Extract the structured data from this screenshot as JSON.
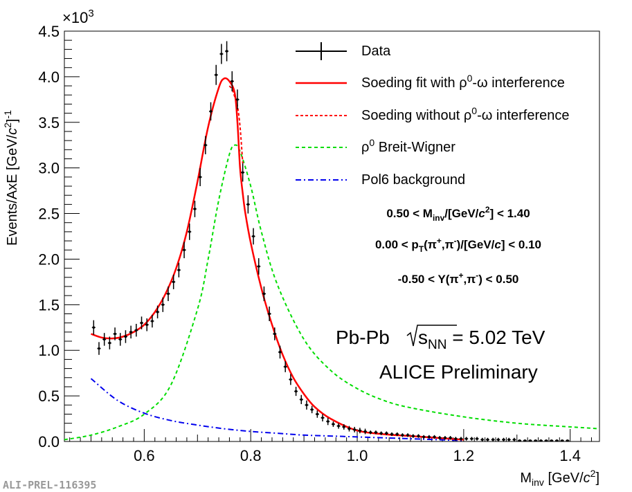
{
  "chart_data": {
    "type": "line",
    "title": "",
    "xlabel_main": "M",
    "xlabel_sub": "inv",
    "xlabel_rest": " [GeV/",
    "xlabel_c": "c",
    "xlabel_sup": "2",
    "xlabel_end": "]",
    "ylabel_main": "Events/AxE [GeV/",
    "ylabel_c": "c",
    "ylabel_sup": "2",
    "ylabel_end": "]",
    "ylabel_exp": "-1",
    "y_multiplier": "×10",
    "y_multiplier_exp": "3",
    "xlim": [
      0.45,
      1.455
    ],
    "ylim": [
      0.0,
      4.5
    ],
    "x_ticks": [
      0.6,
      0.8,
      1.0,
      1.2,
      1.4
    ],
    "x_tick_labels": [
      "0.6",
      "0.8",
      "1.0",
      "1.2",
      "1.4"
    ],
    "y_ticks": [
      0.0,
      0.5,
      1.0,
      1.5,
      2.0,
      2.5,
      3.0,
      3.5,
      4.0,
      4.5
    ],
    "y_tick_labels": [
      "0.0",
      "0.5",
      "1.0",
      "1.5",
      "2.0",
      "2.5",
      "3.0",
      "3.5",
      "4.0",
      "4.5"
    ],
    "legend": [
      {
        "key": "data",
        "label_a": "Data",
        "label_sup": "",
        "label_b": "",
        "color": "#000000",
        "style": "errorbar"
      },
      {
        "key": "fit",
        "label_a": "Soeding fit with ρ",
        "label_sup": "0",
        "label_b": "-ω interference",
        "color": "#ff0000",
        "style": "solid"
      },
      {
        "key": "nointerf",
        "label_a": "Soeding without ρ",
        "label_sup": "0",
        "label_b": "-ω interference",
        "color": "#ff0000",
        "style": "dashed"
      },
      {
        "key": "bw",
        "label_a": "ρ",
        "label_sup": "0",
        "label_b": " Breit-Wigner",
        "color": "#00dd00",
        "style": "dashed"
      },
      {
        "key": "bkg",
        "label_a": "Pol6 background",
        "label_sup": "",
        "label_b": "",
        "color": "#0000ee",
        "style": "dashdot"
      }
    ],
    "cuts": {
      "mass": {
        "a": "0.50 < M",
        "sub": "inv",
        "b": "/[GeV/",
        "c": "c",
        "sup": "2",
        "d": "] < 1.40"
      },
      "pt": {
        "a": "0.00 < p",
        "sub": "T",
        "b": "(π",
        "sup1": "+",
        "c": ",π",
        "sup2": "-",
        "d": ")/[GeV/",
        "e": "c",
        "f": "]  < 0.10"
      },
      "rap": {
        "a": "-0.50 < Y(π",
        "sup1": "+",
        "b": ",π",
        "sup2": "-",
        "c": ") < 0.50"
      }
    },
    "system": {
      "a": "Pb-Pb ",
      "s": "s",
      "sub": "NN",
      "b": " = 5.02 TeV"
    },
    "experiment": "ALICE Preliminary",
    "preliminary_id": "ALI-PREL-116395",
    "series": [
      {
        "name": "Data",
        "x": [
          0.505,
          0.515,
          0.525,
          0.535,
          0.545,
          0.555,
          0.565,
          0.575,
          0.585,
          0.595,
          0.605,
          0.615,
          0.625,
          0.635,
          0.645,
          0.655,
          0.665,
          0.675,
          0.685,
          0.695,
          0.705,
          0.715,
          0.725,
          0.735,
          0.745,
          0.755,
          0.765,
          0.775,
          0.785,
          0.795,
          0.805,
          0.815,
          0.825,
          0.835,
          0.845,
          0.855,
          0.865,
          0.875,
          0.885,
          0.895,
          0.905,
          0.915,
          0.925,
          0.935,
          0.945,
          0.955,
          0.965,
          0.975,
          0.985,
          0.995,
          1.005,
          1.015,
          1.025,
          1.035,
          1.045,
          1.055,
          1.065,
          1.075,
          1.085,
          1.095,
          1.105,
          1.115,
          1.125,
          1.135,
          1.145,
          1.155,
          1.165,
          1.175,
          1.185,
          1.195,
          1.205,
          1.215,
          1.225,
          1.235,
          1.245,
          1.255,
          1.265,
          1.275,
          1.285,
          1.295,
          1.305,
          1.315,
          1.325,
          1.335,
          1.345,
          1.355,
          1.365,
          1.375,
          1.385,
          1.395
        ],
        "y": [
          1.25,
          1.02,
          1.12,
          1.08,
          1.18,
          1.12,
          1.15,
          1.2,
          1.22,
          1.3,
          1.28,
          1.32,
          1.42,
          1.5,
          1.62,
          1.75,
          1.88,
          2.1,
          2.3,
          2.55,
          2.9,
          3.25,
          3.62,
          4.02,
          4.25,
          4.28,
          3.95,
          3.75,
          2.95,
          2.6,
          2.25,
          1.92,
          1.62,
          1.4,
          1.18,
          0.98,
          0.82,
          0.68,
          0.55,
          0.46,
          0.4,
          0.35,
          0.3,
          0.26,
          0.22,
          0.19,
          0.17,
          0.16,
          0.14,
          0.13,
          0.12,
          0.11,
          0.1,
          0.1,
          0.09,
          0.09,
          0.08,
          0.08,
          0.07,
          0.07,
          0.06,
          0.06,
          0.05,
          0.05,
          0.05,
          0.04,
          0.04,
          0.04,
          0.03,
          0.03,
          0.03,
          0.03,
          0.03,
          0.02,
          0.02,
          0.02,
          0.02,
          0.02,
          0.02,
          0.02,
          0.01,
          0.01,
          0.01,
          0.01,
          0.01,
          0.01,
          0.01,
          0.01,
          0.01,
          0.01
        ],
        "err": [
          0.08,
          0.07,
          0.07,
          0.07,
          0.07,
          0.07,
          0.07,
          0.07,
          0.07,
          0.07,
          0.07,
          0.07,
          0.07,
          0.08,
          0.08,
          0.08,
          0.08,
          0.09,
          0.09,
          0.09,
          0.1,
          0.1,
          0.1,
          0.11,
          0.11,
          0.11,
          0.11,
          0.11,
          0.1,
          0.1,
          0.09,
          0.09,
          0.08,
          0.08,
          0.07,
          0.07,
          0.06,
          0.06,
          0.05,
          0.05,
          0.05,
          0.04,
          0.04,
          0.04,
          0.04,
          0.03,
          0.03,
          0.03,
          0.03,
          0.03,
          0.03,
          0.03,
          0.02,
          0.02,
          0.02,
          0.02,
          0.02,
          0.02,
          0.02,
          0.02,
          0.02,
          0.02,
          0.02,
          0.02,
          0.02,
          0.02,
          0.02,
          0.02,
          0.02,
          0.02,
          0.02,
          0.02,
          0.02,
          0.02,
          0.02,
          0.02,
          0.02,
          0.02,
          0.02,
          0.02,
          0.01,
          0.01,
          0.01,
          0.01,
          0.01,
          0.01,
          0.01,
          0.01,
          0.01,
          0.01
        ]
      },
      {
        "name": "Soeding fit with ρ0-ω interference",
        "x": [
          0.5,
          0.52,
          0.54,
          0.56,
          0.58,
          0.6,
          0.62,
          0.64,
          0.66,
          0.68,
          0.7,
          0.72,
          0.74,
          0.75,
          0.76,
          0.77,
          0.775,
          0.78,
          0.785,
          0.79,
          0.8,
          0.82,
          0.84,
          0.86,
          0.88,
          0.9,
          0.92,
          0.95,
          1.0,
          1.05,
          1.1,
          1.15,
          1.2
        ],
        "y": [
          1.18,
          1.14,
          1.13,
          1.15,
          1.2,
          1.28,
          1.42,
          1.62,
          1.9,
          2.3,
          2.85,
          3.45,
          3.88,
          3.98,
          3.95,
          3.82,
          3.5,
          3.0,
          2.72,
          2.5,
          2.18,
          1.68,
          1.28,
          0.95,
          0.7,
          0.52,
          0.38,
          0.25,
          0.12,
          0.08,
          0.06,
          0.04,
          0.02
        ]
      },
      {
        "name": "Soeding without ρ0-ω interference",
        "x": [
          0.76,
          0.765,
          0.77,
          0.775,
          0.78,
          0.785
        ],
        "y": [
          3.9,
          3.86,
          3.78,
          3.68,
          3.45,
          3.05
        ]
      },
      {
        "name": "ρ0 Breit-Wigner",
        "x": [
          0.45,
          0.5,
          0.55,
          0.6,
          0.65,
          0.7,
          0.72,
          0.74,
          0.76,
          0.77,
          0.78,
          0.8,
          0.82,
          0.85,
          0.9,
          0.95,
          1.0,
          1.05,
          1.1,
          1.2,
          1.3,
          1.4,
          1.455
        ],
        "y": [
          0.02,
          0.07,
          0.16,
          0.3,
          0.62,
          1.45,
          2.0,
          2.65,
          3.15,
          3.25,
          3.18,
          2.8,
          2.3,
          1.72,
          1.12,
          0.78,
          0.58,
          0.45,
          0.37,
          0.27,
          0.2,
          0.16,
          0.14
        ]
      },
      {
        "name": "Pol6 background",
        "x": [
          0.5,
          0.55,
          0.6,
          0.65,
          0.7,
          0.75,
          0.8,
          0.85,
          0.9,
          0.95,
          1.0,
          1.05,
          1.1,
          1.15,
          1.2
        ],
        "y": [
          0.69,
          0.45,
          0.31,
          0.23,
          0.18,
          0.14,
          0.11,
          0.09,
          0.07,
          0.06,
          0.05,
          0.04,
          0.03,
          0.02,
          0.01
        ]
      }
    ]
  }
}
